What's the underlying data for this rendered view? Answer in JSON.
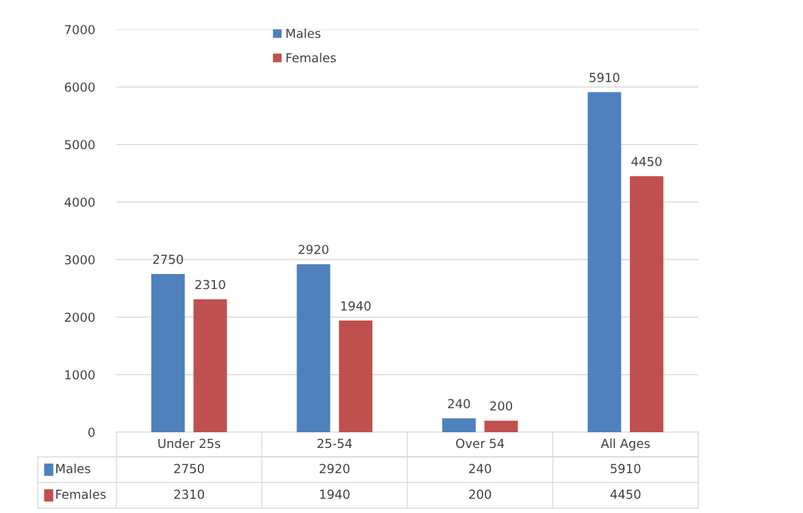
{
  "chart_data": [
    {
      "type": "bar",
      "categories": [
        "Under 25s",
        "25-54",
        "Over 54",
        "All Ages"
      ],
      "series": [
        {
          "name": "Males",
          "color": "#4f81bd",
          "values": [
            2750,
            2920,
            240,
            5910
          ],
          "value_labels": [
            "2750",
            "2920",
            "240",
            "5910"
          ]
        },
        {
          "name": "Females",
          "color": "#c0504d",
          "values": [
            2310,
            1940,
            200,
            4450
          ],
          "value_labels": [
            "2310",
            "1940",
            "200",
            "4450"
          ]
        }
      ],
      "ylim": [
        0,
        7000
      ],
      "yticks": [
        0,
        1000,
        2000,
        3000,
        4000,
        5000,
        6000,
        7000
      ],
      "grid": "y",
      "legend": "top left"
    },
    {
      "type": "other",
      "series": [
        {
          "name": "Males",
          "color": "#4f81bd"
        },
        {
          "name": "Females",
          "color": "#c0504d"
        }
      ],
      "annotations": [
        "2750",
        "2920",
        "240",
        "5910",
        "2310",
        "1940",
        "200",
        "4450"
      ]
    }
  ]
}
